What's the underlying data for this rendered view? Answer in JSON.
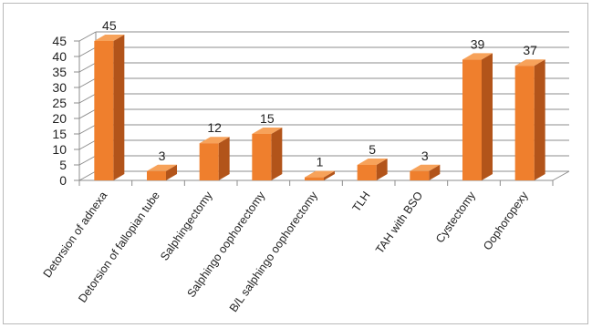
{
  "chart_data": {
    "type": "bar",
    "categories": [
      "Detorsion of adnexa",
      "Detorsion of fallopian tube",
      "Salphingectomy",
      "Salphingo oophorectomy",
      "B/L salphingo oophorectomy",
      "TLH",
      "TAH with BSO",
      "Cystectomy",
      "Oophoropexy"
    ],
    "values": [
      45,
      3,
      12,
      15,
      1,
      5,
      3,
      39,
      37
    ],
    "data_labels": [
      "45",
      "3",
      "12",
      "15",
      "1",
      "5",
      "3",
      "39",
      "37"
    ],
    "y_ticks": [
      "0",
      "5",
      "10",
      "15",
      "20",
      "25",
      "30",
      "35",
      "40",
      "45"
    ],
    "ylim": [
      0,
      45
    ],
    "title": "",
    "xlabel": "",
    "ylabel": "",
    "grid": true,
    "legend": "none",
    "style": "3d-column",
    "colors": {
      "bar_front": "#EF7F2D",
      "bar_top": "#F7A25A",
      "bar_side": "#B2541A",
      "grid": "#8c8c8c",
      "axis": "#8c8c8c",
      "text": "#222222"
    }
  }
}
